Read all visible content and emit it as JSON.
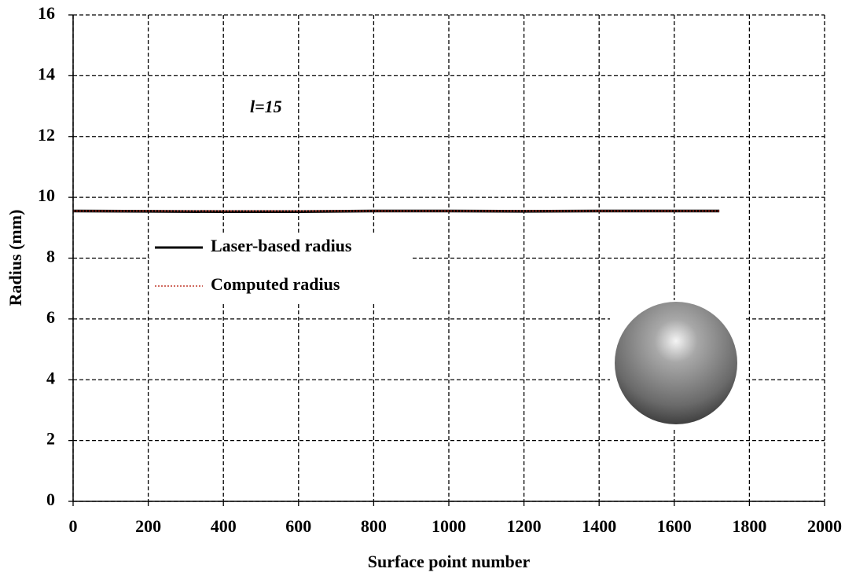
{
  "chart_data": {
    "type": "line",
    "x_label": "Surface point number",
    "y_label": "Radius (mm)",
    "annotation": "l=15",
    "x": [
      0,
      200,
      400,
      600,
      800,
      1000,
      1200,
      1400,
      1600,
      1720
    ],
    "series": [
      {
        "name": "Laser-based radius",
        "color": "#000000",
        "values": [
          9.55,
          9.54,
          9.53,
          9.53,
          9.55,
          9.55,
          9.54,
          9.55,
          9.55,
          9.55
        ]
      },
      {
        "name": "Computed radius",
        "color": "#c0392b",
        "values": [
          9.55,
          9.55,
          9.55,
          9.55,
          9.55,
          9.55,
          9.55,
          9.55,
          9.55,
          9.55
        ]
      }
    ],
    "xlim": [
      0,
      2000
    ],
    "xticks": [
      0,
      200,
      400,
      600,
      800,
      1000,
      1200,
      1400,
      1600,
      1800,
      2000
    ],
    "ylim": [
      0,
      16
    ],
    "yticks": [
      0,
      2,
      4,
      6,
      8,
      10,
      12,
      14,
      16
    ],
    "grid": true
  }
}
